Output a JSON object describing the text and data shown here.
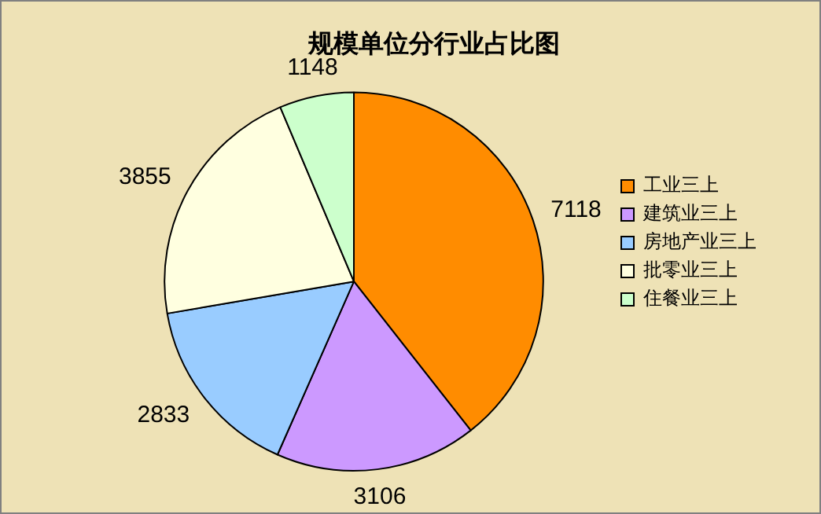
{
  "chart_data": {
    "type": "pie",
    "title": "规模单位分行业占比图",
    "categories": [
      "工业三上",
      "建筑业三上",
      "房地产业三上",
      "批零业三上",
      "住餐业三上"
    ],
    "values": [
      7118,
      3106,
      2833,
      3855,
      1148
    ],
    "colors": [
      "#ff8c00",
      "#cc99ff",
      "#99ccff",
      "#ffffe0",
      "#ccffcc"
    ],
    "data_labels": true,
    "legend": "right"
  }
}
